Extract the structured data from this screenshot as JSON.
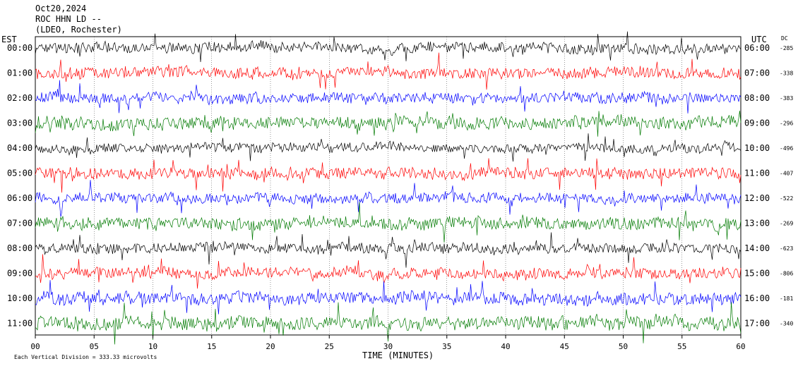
{
  "header": {
    "date": "Oct20,2024",
    "station": "ROC HHN LD --",
    "network": "(LDEO, Rochester)"
  },
  "left_axis_label": "EST",
  "right_axis_label": "UTC",
  "dc_label": "DC",
  "footer": {
    "scale_note": "Each Vertical Division =  333.33 microvolts",
    "x_axis_title": "TIME (MINUTES)"
  },
  "colors": {
    "black": "#000000",
    "red": "#ff0000",
    "blue": "#0000ff",
    "green": "#007a00",
    "grid": "#000000"
  },
  "chart_data": {
    "type": "line",
    "title": "ROC HHN LD --",
    "xlabel": "TIME (MINUTES)",
    "xlim": [
      0,
      60
    ],
    "x_ticks": [
      "00",
      "05",
      "10",
      "15",
      "20",
      "25",
      "30",
      "35",
      "40",
      "45",
      "50",
      "55",
      "60"
    ],
    "grid": true,
    "rows": [
      {
        "est": "00:00",
        "utc": "06:00",
        "dc": "-285",
        "color": "black",
        "amplitude": 1.0
      },
      {
        "est": "01:00",
        "utc": "07:00",
        "dc": "-338",
        "color": "red",
        "amplitude": 1.1
      },
      {
        "est": "02:00",
        "utc": "08:00",
        "dc": "-383",
        "color": "blue",
        "amplitude": 1.0
      },
      {
        "est": "03:00",
        "utc": "09:00",
        "dc": "-296",
        "color": "green",
        "amplitude": 1.2
      },
      {
        "est": "04:00",
        "utc": "10:00",
        "dc": "-496",
        "color": "black",
        "amplitude": 0.9
      },
      {
        "est": "05:00",
        "utc": "11:00",
        "dc": "-407",
        "color": "red",
        "amplitude": 1.1
      },
      {
        "est": "06:00",
        "utc": "12:00",
        "dc": "-522",
        "color": "blue",
        "amplitude": 1.0
      },
      {
        "est": "07:00",
        "utc": "13:00",
        "dc": "-269",
        "color": "green",
        "amplitude": 1.2
      },
      {
        "est": "08:00",
        "utc": "14:00",
        "dc": "-623",
        "color": "black",
        "amplitude": 1.0
      },
      {
        "est": "09:00",
        "utc": "15:00",
        "dc": "-806",
        "color": "red",
        "amplitude": 1.1
      },
      {
        "est": "10:00",
        "utc": "16:00",
        "dc": "-181",
        "color": "blue",
        "amplitude": 1.2
      },
      {
        "est": "11:00",
        "utc": "17:00",
        "dc": "-340",
        "color": "green",
        "amplitude": 1.3
      }
    ]
  }
}
